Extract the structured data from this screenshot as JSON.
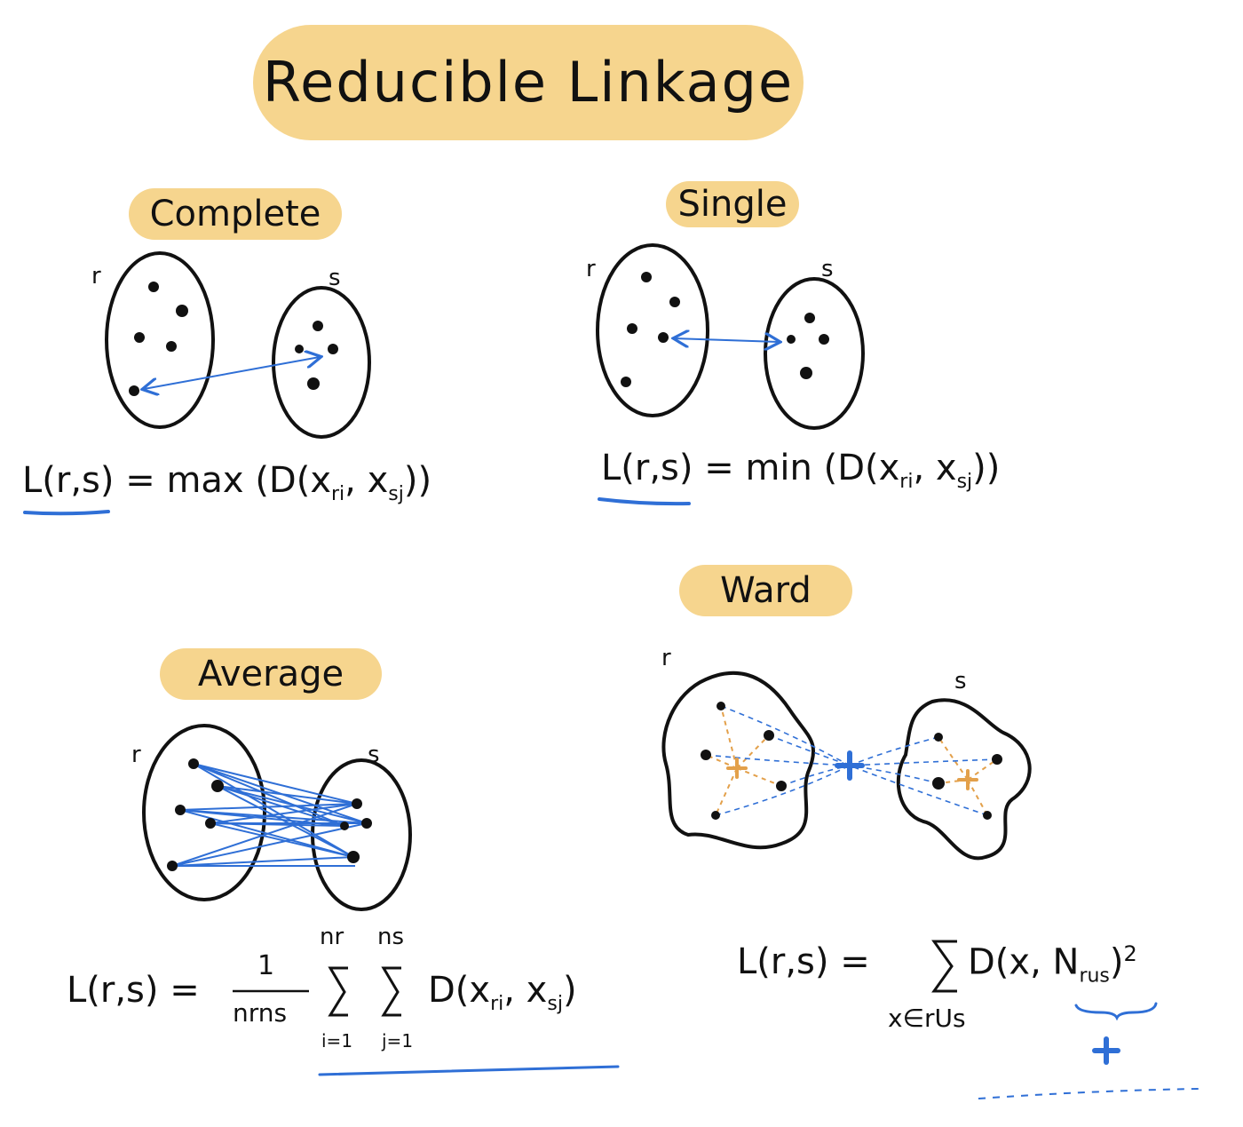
{
  "title": "Reducible Linkage",
  "sections": {
    "complete": {
      "heading": "Complete",
      "cluster_r": "r",
      "cluster_s": "s",
      "formula_lhs": "L(r,s)",
      "formula_rhs": "= max (D(x",
      "sub1": "ri",
      "sep": ", x",
      "sub2": "sj",
      "close": "))"
    },
    "single": {
      "heading": "Single",
      "cluster_r": "r",
      "cluster_s": "s",
      "formula_lhs": "L(r,s)",
      "formula_rhs": "= min (D(x",
      "sub1": "ri",
      "sep": ", x",
      "sub2": "sj",
      "close": "))"
    },
    "average": {
      "heading": "Average",
      "cluster_r": "r",
      "cluster_s": "s",
      "formula_lhs": "L(r,s) =",
      "frac_num": "1",
      "frac_den": "nrns",
      "sum_top_1": "nr",
      "sum_top_2": "ns",
      "sum_bot_1": "i=1",
      "sum_bot_2": "j=1",
      "sum_body": "D(x",
      "sub1": "ri",
      "sep": ", x",
      "sub2": "sj",
      "close": ")"
    },
    "ward": {
      "heading": "Ward",
      "cluster_r": "r",
      "cluster_s": "s",
      "formula_lhs": "L(r,s) =",
      "sum_body": "D(x, N",
      "sub_n": "rus",
      "close": ")",
      "power": "2",
      "sum_bot": "x∈rUs"
    }
  },
  "colors": {
    "highlight": "#f6d58e",
    "ink": "#111111",
    "accent_blue": "#2f6fd6",
    "centroid_orange": "#e3a04a"
  }
}
